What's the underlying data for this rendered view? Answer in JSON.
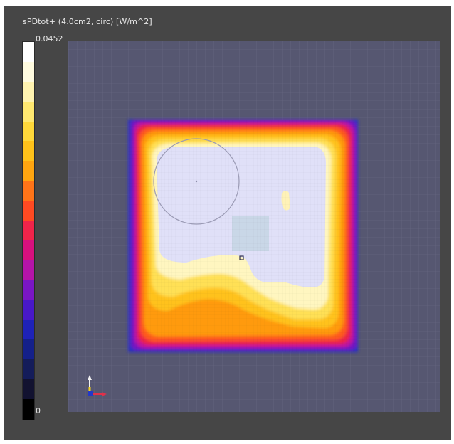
{
  "viewer": {
    "quantity_label": "sPDtot+ (4.0cm2, circ) [W/m^2]"
  },
  "colorbar": {
    "max_label": "0.0452",
    "min_label": "0",
    "colors_top_to_bottom": [
      "#ffffff",
      "#fffbe0",
      "#fff3b0",
      "#ffe870",
      "#ffd83a",
      "#ffc21a",
      "#ffa510",
      "#ff7418",
      "#ff4a22",
      "#f0244a",
      "#d8107e",
      "#b414a8",
      "#7a16c4",
      "#4818c8",
      "#1e22b8",
      "#14208a",
      "#141c5a",
      "#121230",
      "#000000"
    ]
  },
  "heatmap": {
    "background_color": "#565771",
    "max_region_color": "#e0e0f8",
    "averaging_circle_color": "#9a9ab4",
    "peak_marker_color": "#303050"
  }
}
